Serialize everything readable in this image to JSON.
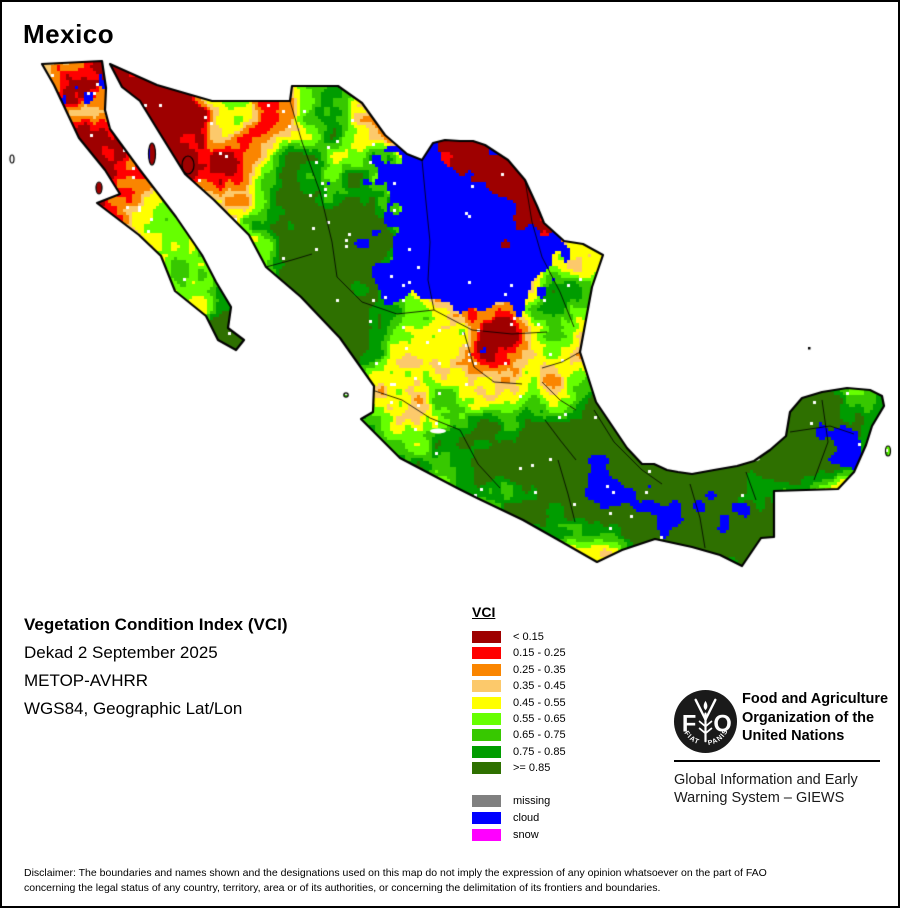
{
  "title": "Mexico",
  "info": {
    "product": "Vegetation Condition Index (VCI)",
    "dekad": "Dekad 2 September 2025",
    "sensor": "METOP-AVHRR",
    "projection": "WGS84, Geographic Lat/Lon"
  },
  "legend": {
    "title": "VCI",
    "classes": [
      {
        "label": "< 0.15",
        "color": "#9E0000"
      },
      {
        "label": "0.15 - 0.25",
        "color": "#FF0000"
      },
      {
        "label": "0.25 - 0.35",
        "color": "#FA8500"
      },
      {
        "label": "0.35 - 0.45",
        "color": "#FCC96B"
      },
      {
        "label": "0.45 - 0.55",
        "color": "#FFFF00"
      },
      {
        "label": "0.55 - 0.65",
        "color": "#66FF00"
      },
      {
        "label": "0.65 - 0.75",
        "color": "#37C800"
      },
      {
        "label": "0.75 - 0.85",
        "color": "#009C00"
      },
      {
        "label": ">= 0.85",
        "color": "#2E7000"
      }
    ],
    "extra_classes": [
      {
        "label": "missing",
        "color": "#808080"
      },
      {
        "label": "cloud",
        "color": "#0000FF"
      },
      {
        "label": "snow",
        "color": "#FF00FF"
      }
    ]
  },
  "org": {
    "logo": {
      "left_letter": "F",
      "right_letter": "O",
      "motto": "FIAT PANIS"
    },
    "name_lines": [
      "Food and Agriculture",
      "Organization of the",
      "United Nations"
    ],
    "subtitle_lines": [
      "Global Information and Early",
      "Warning System – GIEWS"
    ]
  },
  "disclaimer": {
    "line1": "Disclaimer: The boundaries and names shown and the designations used on this map do not imply the expression of any opinion whatsoever on the part of FAO",
    "line2": "concerning the legal status of any country, territory, area or of its authorities, or concerning the delimitation of its frontiers and boundaries."
  }
}
